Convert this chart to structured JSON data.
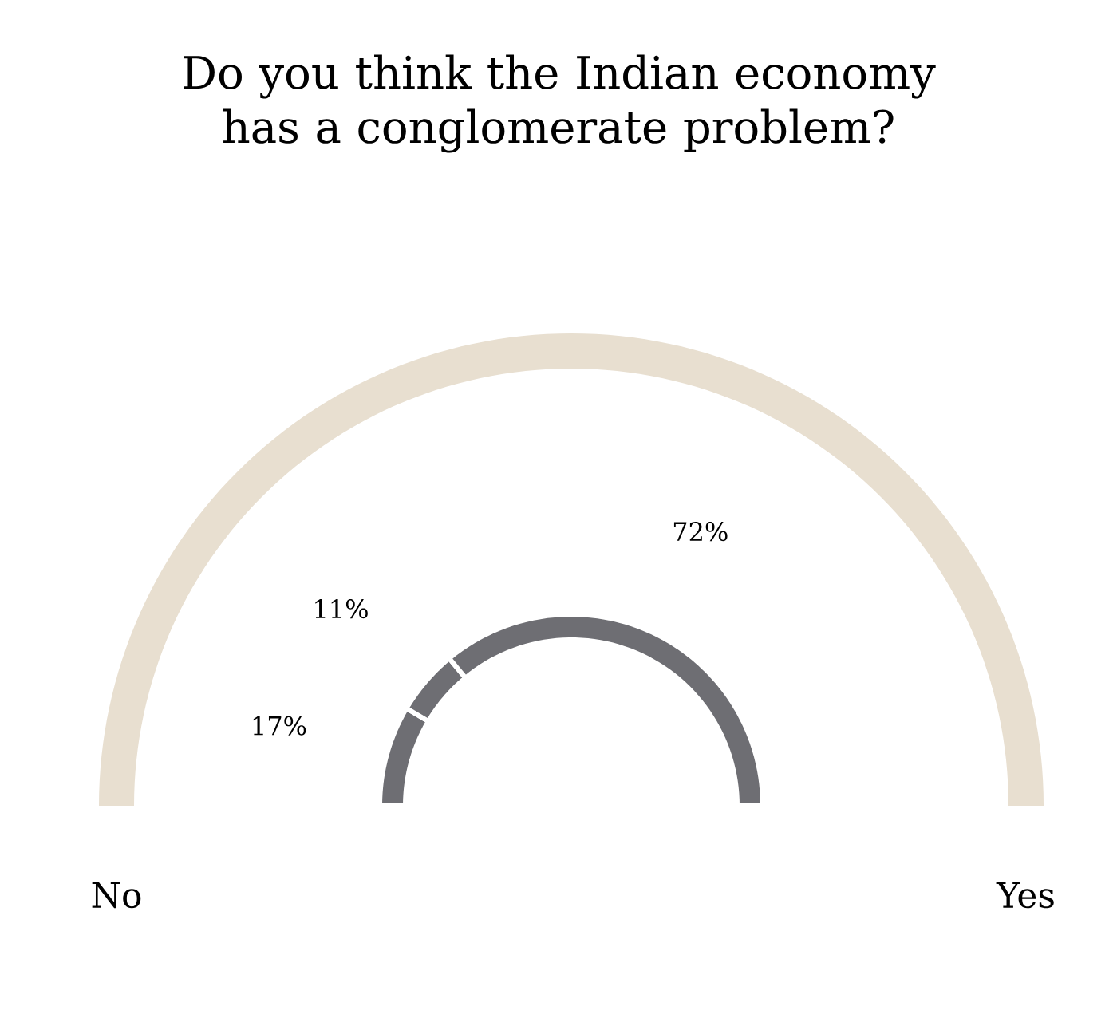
{
  "chart_data": {
    "type": "donut",
    "title": "Do you think the Indian economy has a conglomerate problem?",
    "categories": [
      null,
      null,
      null
    ],
    "values": [
      17,
      11,
      72
    ],
    "colors": [
      "#6e6e73",
      "#6e6e73",
      "#6e6e73"
    ],
    "value_labels": [
      "17%",
      "11%",
      "72%"
    ],
    "annotations": [
      "No",
      "Yes"
    ]
  }
}
